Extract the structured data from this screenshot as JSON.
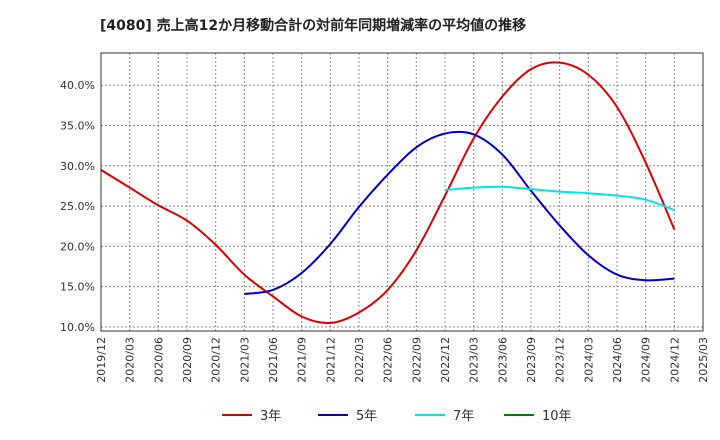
{
  "chart_data": {
    "type": "line",
    "title": "[4080]  売上高12か月移動合計の対前年同期増減率の平均値の推移",
    "xlabel": "",
    "ylabel": "",
    "x_ticks": [
      "2019/12",
      "2020/03",
      "2020/06",
      "2020/09",
      "2020/12",
      "2021/03",
      "2021/06",
      "2021/09",
      "2021/12",
      "2022/03",
      "2022/06",
      "2022/09",
      "2022/12",
      "2023/03",
      "2023/06",
      "2023/09",
      "2023/12",
      "2024/03",
      "2024/06",
      "2024/09",
      "2024/12",
      "2025/03"
    ],
    "y_ticks": [
      "10.0%",
      "15.0%",
      "20.0%",
      "25.0%",
      "30.0%",
      "35.0%",
      "40.0%"
    ],
    "ylim": [
      9.5,
      44.0
    ],
    "y_unit": "%",
    "grid": true,
    "legend_position": "bottom",
    "series": [
      {
        "name": "3年",
        "color": "#dd0000",
        "points": [
          [
            "2019/12",
            29.5
          ],
          [
            "2020/03",
            27.3
          ],
          [
            "2020/06",
            25.1
          ],
          [
            "2020/09",
            23.2
          ],
          [
            "2020/12",
            20.2
          ],
          [
            "2021/03",
            16.5
          ],
          [
            "2021/06",
            13.8
          ],
          [
            "2021/09",
            11.3
          ],
          [
            "2021/12",
            10.5
          ],
          [
            "2022/03",
            11.8
          ],
          [
            "2022/06",
            14.6
          ],
          [
            "2022/09",
            19.5
          ],
          [
            "2022/12",
            26.3
          ],
          [
            "2023/03",
            33.4
          ],
          [
            "2023/06",
            38.6
          ],
          [
            "2023/09",
            42.0
          ],
          [
            "2023/12",
            42.8
          ],
          [
            "2024/03",
            41.3
          ],
          [
            "2024/06",
            37.3
          ],
          [
            "2024/09",
            30.4
          ],
          [
            "2024/12",
            22.1
          ]
        ]
      },
      {
        "name": "5年",
        "color": "#0000cc",
        "points": [
          [
            "2021/03",
            14.1
          ],
          [
            "2021/06",
            14.6
          ],
          [
            "2021/09",
            16.7
          ],
          [
            "2021/12",
            20.3
          ],
          [
            "2022/03",
            24.9
          ],
          [
            "2022/06",
            28.9
          ],
          [
            "2022/09",
            32.3
          ],
          [
            "2022/12",
            34.0
          ],
          [
            "2023/03",
            33.9
          ],
          [
            "2023/06",
            31.4
          ],
          [
            "2023/09",
            26.9
          ],
          [
            "2023/12",
            22.6
          ],
          [
            "2024/03",
            18.9
          ],
          [
            "2024/06",
            16.5
          ],
          [
            "2024/09",
            15.8
          ],
          [
            "2024/12",
            16.0
          ]
        ]
      },
      {
        "name": "7年",
        "color": "#00e5e5",
        "points": [
          [
            "2022/12",
            27.0
          ],
          [
            "2023/03",
            27.3
          ],
          [
            "2023/06",
            27.4
          ],
          [
            "2023/09",
            27.1
          ],
          [
            "2023/12",
            26.8
          ],
          [
            "2024/03",
            26.6
          ],
          [
            "2024/06",
            26.3
          ],
          [
            "2024/09",
            25.8
          ],
          [
            "2024/12",
            24.5
          ]
        ]
      },
      {
        "name": "10年",
        "color": "#008000",
        "points": []
      }
    ]
  }
}
